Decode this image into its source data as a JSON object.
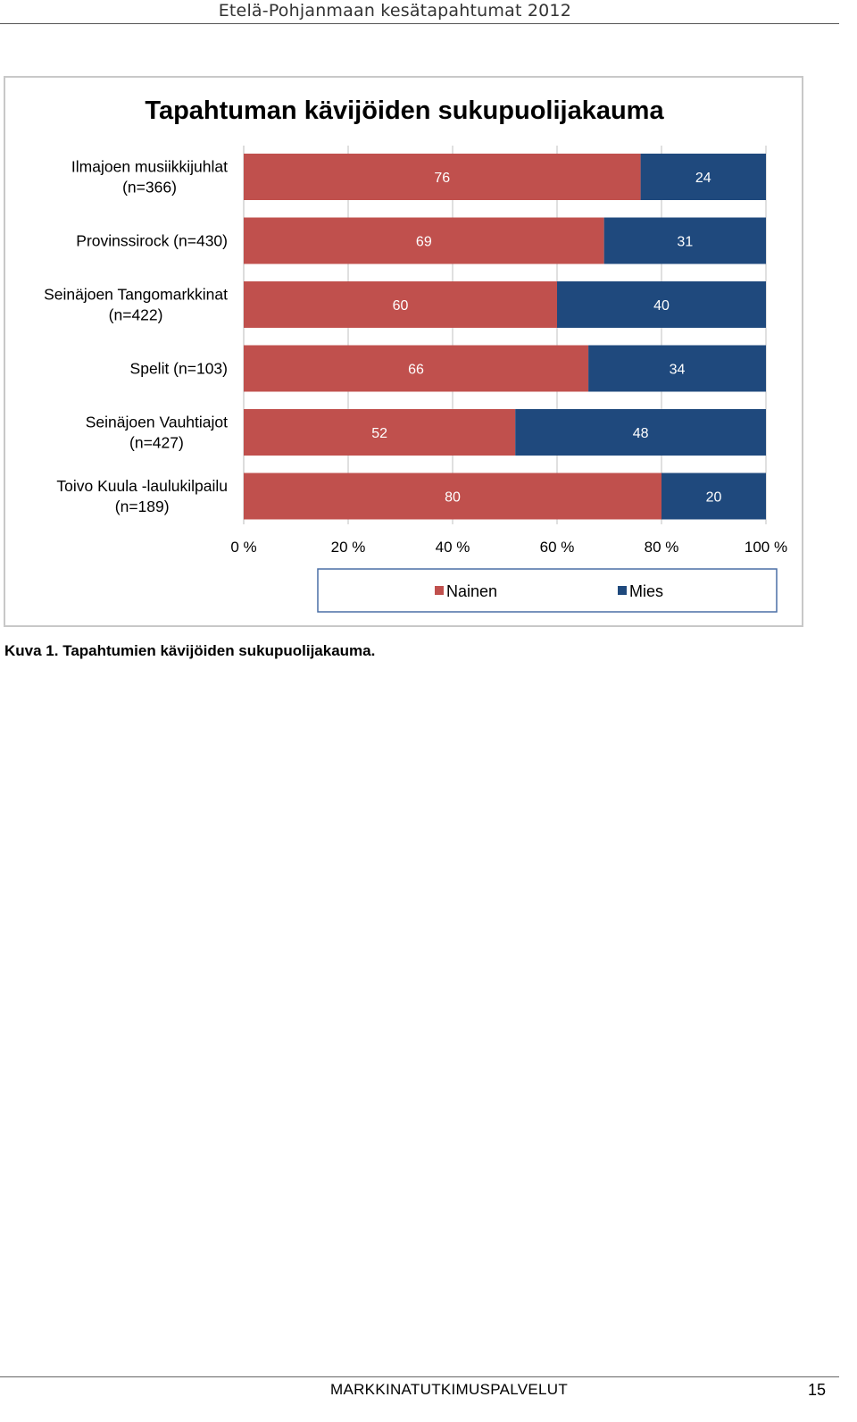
{
  "header": {
    "title": "Etelä-Pohjanmaan kesätapahtumat 2012"
  },
  "caption": "Kuva 1. Tapahtumien kävijöiden sukupuolijakauma.",
  "footer": {
    "left": "MARKKINATUTKIMUSPALVELUT",
    "page": "15"
  },
  "colors": {
    "nainen": "#c0504d",
    "mies": "#1f497d"
  },
  "chart_data": {
    "type": "bar",
    "orientation": "horizontal",
    "stacked": true,
    "title": "Tapahtuman kävijöiden sukupuolijakauma",
    "categories": [
      [
        "Ilmajoen musiikkijuhlat",
        "(n=366)"
      ],
      [
        "Provinssirock (n=430)"
      ],
      [
        "Seinäjoen Tangomarkkinat",
        "(n=422)"
      ],
      [
        "Spelit (n=103)"
      ],
      [
        "Seinäjoen Vauhtiajot",
        "(n=427)"
      ],
      [
        "Toivo Kuula -laulukilpailu",
        "(n=189)"
      ]
    ],
    "series": [
      {
        "name": "Nainen",
        "values": [
          76,
          69,
          60,
          66,
          52,
          80
        ]
      },
      {
        "name": "Mies",
        "values": [
          24,
          31,
          40,
          34,
          48,
          20
        ]
      }
    ],
    "xticks": [
      "0 %",
      "20 %",
      "40 %",
      "60 %",
      "80 %",
      "100 %"
    ],
    "xlim": [
      0,
      100
    ],
    "grid": true,
    "legend_position": "bottom"
  }
}
